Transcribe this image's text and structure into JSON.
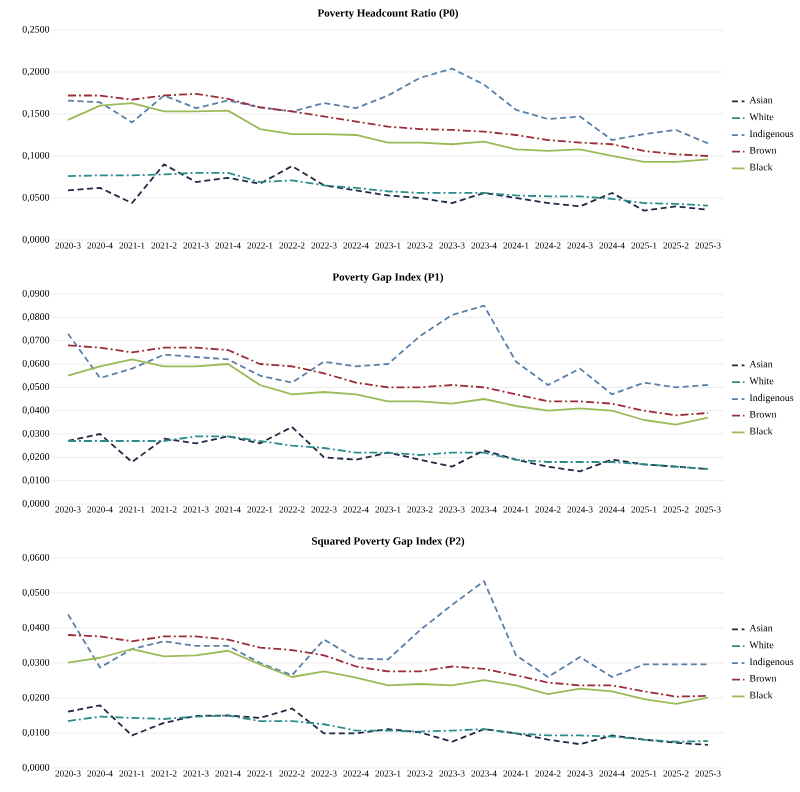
{
  "chart_data": [
    {
      "type": "line",
      "title": "Poverty Headcount Ratio (P0)",
      "grid": "y",
      "legend": "right",
      "categories": [
        "2020-3",
        "2020-4",
        "2021-1",
        "2021-2",
        "2021-3",
        "2021-4",
        "2022-1",
        "2022-2",
        "2022-3",
        "2022-4",
        "2023-1",
        "2023-2",
        "2023-3",
        "2023-4",
        "2024-1",
        "2024-2",
        "2024-3",
        "2024-4",
        "2025-1",
        "2025-2",
        "2025-3"
      ],
      "ylim": [
        0,
        0.25
      ],
      "yticks": [
        {
          "value": 0,
          "label": "0,0000"
        },
        {
          "value": 0.05,
          "label": "0,0500"
        },
        {
          "value": 0.1,
          "label": "0,1000"
        },
        {
          "value": 0.15,
          "label": "0,1500"
        },
        {
          "value": 0.2,
          "label": "0,2000"
        },
        {
          "value": 0.25,
          "label": "0,2500"
        }
      ],
      "series": [
        {
          "name": "Asian",
          "color": "#1f2a44",
          "line_style": "dashed",
          "values": [
            0.059,
            0.062,
            0.044,
            0.09,
            0.069,
            0.074,
            0.067,
            0.088,
            0.065,
            0.059,
            0.053,
            0.05,
            0.044,
            0.056,
            0.05,
            0.044,
            0.04,
            0.056,
            0.035,
            0.04,
            0.036
          ]
        },
        {
          "name": "White",
          "color": "#2e8b8b",
          "line_style": "dashdot",
          "values": [
            0.076,
            0.077,
            0.077,
            0.078,
            0.08,
            0.08,
            0.069,
            0.071,
            0.065,
            0.062,
            0.058,
            0.056,
            0.056,
            0.056,
            0.053,
            0.052,
            0.052,
            0.049,
            0.044,
            0.043,
            0.041
          ]
        },
        {
          "name": "Indigenous",
          "color": "#5a7fa8",
          "line_style": "dashed",
          "values": [
            0.166,
            0.164,
            0.14,
            0.172,
            0.157,
            0.166,
            0.158,
            0.153,
            0.163,
            0.157,
            0.172,
            0.193,
            0.204,
            0.185,
            0.155,
            0.144,
            0.147,
            0.119,
            0.126,
            0.131,
            0.115
          ]
        },
        {
          "name": "Brown",
          "color": "#9b2d3a",
          "line_style": "dashdot",
          "values": [
            0.172,
            0.172,
            0.167,
            0.172,
            0.174,
            0.168,
            0.158,
            0.153,
            0.147,
            0.141,
            0.135,
            0.132,
            0.131,
            0.129,
            0.125,
            0.119,
            0.116,
            0.114,
            0.106,
            0.102,
            0.1
          ]
        },
        {
          "name": "Black",
          "color": "#9bbb59",
          "line_style": "solid",
          "values": [
            0.143,
            0.16,
            0.163,
            0.153,
            0.153,
            0.154,
            0.132,
            0.126,
            0.126,
            0.125,
            0.116,
            0.116,
            0.114,
            0.117,
            0.108,
            0.106,
            0.108,
            0.1,
            0.093,
            0.093,
            0.096
          ]
        }
      ]
    },
    {
      "type": "line",
      "title": "Poverty Gap Index (P1)",
      "grid": "y",
      "legend": "right",
      "categories": [
        "2020-3",
        "2020-4",
        "2021-1",
        "2021-2",
        "2021-3",
        "2021-4",
        "2022-1",
        "2022-2",
        "2022-3",
        "2022-4",
        "2023-1",
        "2023-2",
        "2023-3",
        "2023-4",
        "2024-1",
        "2024-2",
        "2024-3",
        "2024-4",
        "2025-1",
        "2025-2",
        "2025-3"
      ],
      "ylim": [
        0,
        0.09
      ],
      "yticks": [
        {
          "value": 0,
          "label": "0,0000"
        },
        {
          "value": 0.01,
          "label": "0,0100"
        },
        {
          "value": 0.02,
          "label": "0,0200"
        },
        {
          "value": 0.03,
          "label": "0,0300"
        },
        {
          "value": 0.04,
          "label": "0,0400"
        },
        {
          "value": 0.05,
          "label": "0,0500"
        },
        {
          "value": 0.06,
          "label": "0,0600"
        },
        {
          "value": 0.07,
          "label": "0,0700"
        },
        {
          "value": 0.08,
          "label": "0,0800"
        },
        {
          "value": 0.09,
          "label": "0,0900"
        }
      ],
      "series": [
        {
          "name": "Asian",
          "color": "#1f2a44",
          "line_style": "dashed",
          "values": [
            0.027,
            0.03,
            0.018,
            0.028,
            0.026,
            0.029,
            0.026,
            0.033,
            0.02,
            0.019,
            0.022,
            0.019,
            0.016,
            0.023,
            0.019,
            0.016,
            0.014,
            0.019,
            0.017,
            0.016,
            0.015
          ]
        },
        {
          "name": "White",
          "color": "#2e8b8b",
          "line_style": "dashdot",
          "values": [
            0.027,
            0.027,
            0.027,
            0.027,
            0.029,
            0.029,
            0.027,
            0.025,
            0.024,
            0.022,
            0.022,
            0.021,
            0.022,
            0.022,
            0.019,
            0.018,
            0.018,
            0.018,
            0.017,
            0.016,
            0.015
          ]
        },
        {
          "name": "Indigenous",
          "color": "#5a7fa8",
          "line_style": "dashed",
          "values": [
            0.073,
            0.054,
            0.058,
            0.064,
            0.063,
            0.062,
            0.055,
            0.052,
            0.061,
            0.059,
            0.06,
            0.072,
            0.081,
            0.085,
            0.061,
            0.051,
            0.058,
            0.047,
            0.052,
            0.05,
            0.051
          ]
        },
        {
          "name": "Brown",
          "color": "#9b2d3a",
          "line_style": "dashdot",
          "values": [
            0.068,
            0.067,
            0.065,
            0.067,
            0.067,
            0.066,
            0.06,
            0.059,
            0.056,
            0.052,
            0.05,
            0.05,
            0.051,
            0.05,
            0.047,
            0.044,
            0.044,
            0.043,
            0.04,
            0.038,
            0.039
          ]
        },
        {
          "name": "Black",
          "color": "#9bbb59",
          "line_style": "solid",
          "values": [
            0.055,
            0.059,
            0.062,
            0.059,
            0.059,
            0.06,
            0.051,
            0.047,
            0.048,
            0.047,
            0.044,
            0.044,
            0.043,
            0.045,
            0.042,
            0.04,
            0.041,
            0.04,
            0.036,
            0.034,
            0.037
          ]
        }
      ]
    },
    {
      "type": "line",
      "title": "Squared Poverty Gap Index (P2)",
      "grid": "y",
      "legend": "right",
      "categories": [
        "2020-3",
        "2020-4",
        "2021-1",
        "2021-2",
        "2021-3",
        "2021-4",
        "2022-1",
        "2022-2",
        "2022-3",
        "2022-4",
        "2023-1",
        "2023-2",
        "2023-3",
        "2023-4",
        "2024-1",
        "2024-2",
        "2024-3",
        "2024-4",
        "2025-1",
        "2025-2",
        "2025-3"
      ],
      "ylim": [
        0,
        0.06
      ],
      "yticks": [
        {
          "value": 0,
          "label": "0,0000"
        },
        {
          "value": 0.01,
          "label": "0,0100"
        },
        {
          "value": 0.02,
          "label": "0,0200"
        },
        {
          "value": 0.03,
          "label": "0,0300"
        },
        {
          "value": 0.04,
          "label": "0,0400"
        },
        {
          "value": 0.05,
          "label": "0,0500"
        },
        {
          "value": 0.06,
          "label": "0,0600"
        }
      ],
      "series": [
        {
          "name": "Asian",
          "color": "#1f2a44",
          "line_style": "dashed",
          "values": [
            0.0161,
            0.0179,
            0.0093,
            0.0129,
            0.0149,
            0.015,
            0.0143,
            0.017,
            0.0099,
            0.0099,
            0.0111,
            0.0102,
            0.0075,
            0.0111,
            0.0099,
            0.0081,
            0.0068,
            0.0093,
            0.0081,
            0.0072,
            0.0066
          ]
        },
        {
          "name": "White",
          "color": "#2e8b8b",
          "line_style": "dashdot",
          "values": [
            0.0134,
            0.0147,
            0.0143,
            0.014,
            0.0147,
            0.015,
            0.0134,
            0.0134,
            0.0125,
            0.0107,
            0.0107,
            0.0104,
            0.0107,
            0.0111,
            0.0099,
            0.0093,
            0.0093,
            0.009,
            0.0081,
            0.0075,
            0.0077
          ]
        },
        {
          "name": "Indigenous",
          "color": "#5a7fa8",
          "line_style": "dashed",
          "values": [
            0.0439,
            0.0287,
            0.034,
            0.0362,
            0.0349,
            0.0349,
            0.03,
            0.0265,
            0.0367,
            0.0313,
            0.031,
            0.0394,
            0.0466,
            0.0534,
            0.0322,
            0.026,
            0.0317,
            0.026,
            0.0296,
            0.0296,
            0.0296
          ]
        },
        {
          "name": "Brown",
          "color": "#9b2d3a",
          "line_style": "dashdot",
          "values": [
            0.038,
            0.0376,
            0.0362,
            0.0376,
            0.0376,
            0.0367,
            0.0344,
            0.0337,
            0.0322,
            0.029,
            0.0276,
            0.0276,
            0.029,
            0.0283,
            0.0265,
            0.0244,
            0.0236,
            0.0236,
            0.0219,
            0.0204,
            0.0206
          ]
        },
        {
          "name": "Black",
          "color": "#9bbb59",
          "line_style": "solid",
          "values": [
            0.0301,
            0.0315,
            0.034,
            0.0319,
            0.0322,
            0.0335,
            0.0296,
            0.026,
            0.0276,
            0.0258,
            0.0236,
            0.024,
            0.0236,
            0.0251,
            0.0236,
            0.0211,
            0.0227,
            0.0219,
            0.0197,
            0.0183,
            0.0201
          ]
        }
      ]
    }
  ]
}
